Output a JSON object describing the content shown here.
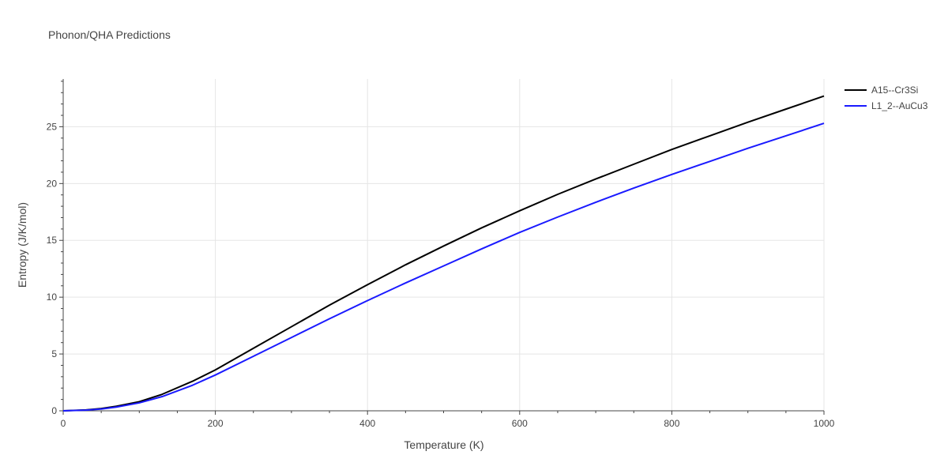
{
  "chart_data": {
    "type": "line",
    "title": "Phonon/QHA Predictions",
    "xlabel": "Temperature (K)",
    "ylabel": "Entropy (J/K/mol)",
    "xlim": [
      0,
      1000
    ],
    "ylim": [
      0,
      29.2
    ],
    "xticks": [
      0,
      200,
      400,
      600,
      800,
      1000
    ],
    "xtick_labels": [
      "0",
      "200",
      "400",
      "600",
      "800",
      "1000"
    ],
    "yticks": [
      0,
      5,
      10,
      15,
      20,
      25
    ],
    "ytick_labels": [
      "0",
      "5",
      "10",
      "15",
      "20",
      "25"
    ],
    "grid": true,
    "legend_position": "top-right",
    "series": [
      {
        "name": "A15--Cr3Si",
        "color": "#000000",
        "x": [
          0,
          30,
          50,
          70,
          100,
          130,
          170,
          200,
          250,
          300,
          350,
          400,
          450,
          500,
          550,
          600,
          650,
          700,
          750,
          800,
          850,
          900,
          950,
          1000
        ],
        "y": [
          0,
          0.08,
          0.2,
          0.4,
          0.8,
          1.45,
          2.6,
          3.6,
          5.5,
          7.4,
          9.3,
          11.1,
          12.85,
          14.5,
          16.1,
          17.6,
          19.05,
          20.4,
          21.7,
          23.0,
          24.2,
          25.4,
          26.55,
          27.7
        ]
      },
      {
        "name": "L1_2--AuCu3",
        "color": "#1a1aff",
        "x": [
          0,
          30,
          50,
          70,
          100,
          130,
          170,
          200,
          250,
          300,
          350,
          400,
          450,
          500,
          550,
          600,
          650,
          700,
          750,
          800,
          850,
          900,
          950,
          1000
        ],
        "y": [
          0,
          0.06,
          0.16,
          0.33,
          0.7,
          1.25,
          2.25,
          3.15,
          4.8,
          6.45,
          8.1,
          9.7,
          11.25,
          12.75,
          14.25,
          15.7,
          17.05,
          18.35,
          19.6,
          20.8,
          21.95,
          23.1,
          24.2,
          25.3
        ]
      }
    ]
  }
}
